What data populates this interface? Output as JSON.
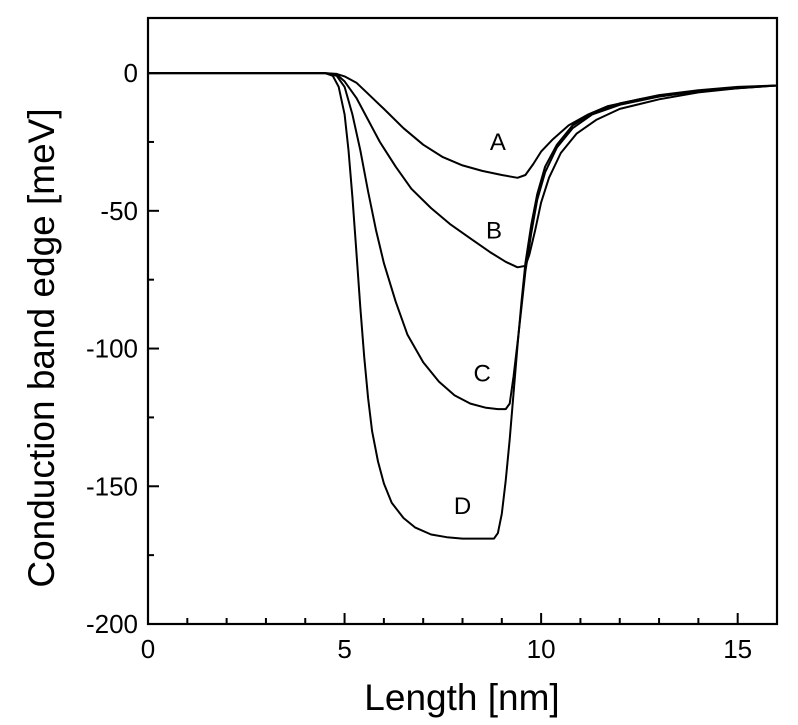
{
  "chart_data": {
    "type": "line",
    "title": "",
    "xlabel": "Length [nm]",
    "ylabel": "Conduction band edge [meV]",
    "xlim": [
      0,
      16
    ],
    "ylim": [
      -200,
      20
    ],
    "x_ticks": [
      0,
      5,
      10,
      15
    ],
    "x_tick_labels": [
      "0",
      "5",
      "10",
      "15"
    ],
    "x_minor_step": 1,
    "y_ticks": [
      0,
      -50,
      -100,
      -150,
      -200
    ],
    "y_tick_labels": [
      "0",
      "-50",
      "-100",
      "-150",
      "-200"
    ],
    "y_minor_step": 25,
    "grid": false,
    "legend": "none",
    "series": [
      {
        "label": "A",
        "label_pos": [
          8.9,
          -28
        ],
        "points": [
          [
            0,
            0
          ],
          [
            4.5,
            0
          ],
          [
            4.8,
            -0.3
          ],
          [
            5.0,
            -1.2
          ],
          [
            5.3,
            -3.5
          ],
          [
            5.6,
            -7.5
          ],
          [
            6.0,
            -13
          ],
          [
            6.5,
            -20
          ],
          [
            7.0,
            -26
          ],
          [
            7.5,
            -30.5
          ],
          [
            8.0,
            -33.5
          ],
          [
            8.5,
            -35.5
          ],
          [
            9.0,
            -37
          ],
          [
            9.4,
            -38
          ],
          [
            9.6,
            -37
          ],
          [
            9.8,
            -33
          ],
          [
            10.0,
            -28.5
          ],
          [
            10.3,
            -24
          ],
          [
            10.7,
            -19
          ],
          [
            11.2,
            -15
          ],
          [
            11.7,
            -12
          ],
          [
            12.5,
            -9.5
          ],
          [
            13.5,
            -7.5
          ],
          [
            14.5,
            -6
          ],
          [
            16,
            -4.5
          ]
        ]
      },
      {
        "label": "B",
        "label_pos": [
          8.8,
          -60
        ],
        "points": [
          [
            0,
            0
          ],
          [
            4.5,
            0
          ],
          [
            4.8,
            -0.5
          ],
          [
            5.0,
            -3
          ],
          [
            5.3,
            -9
          ],
          [
            5.6,
            -17
          ],
          [
            5.9,
            -25
          ],
          [
            6.3,
            -34
          ],
          [
            6.7,
            -42
          ],
          [
            7.2,
            -49
          ],
          [
            7.7,
            -55
          ],
          [
            8.2,
            -60
          ],
          [
            8.7,
            -65
          ],
          [
            9.1,
            -68.5
          ],
          [
            9.4,
            -70.5
          ],
          [
            9.6,
            -70
          ],
          [
            9.7,
            -66
          ],
          [
            9.85,
            -57
          ],
          [
            10.0,
            -47
          ],
          [
            10.2,
            -38
          ],
          [
            10.5,
            -29
          ],
          [
            10.9,
            -22
          ],
          [
            11.4,
            -17
          ],
          [
            12,
            -13
          ],
          [
            13,
            -9.5
          ],
          [
            14,
            -7
          ],
          [
            15,
            -5.5
          ],
          [
            16,
            -4.5
          ]
        ]
      },
      {
        "label": "C",
        "label_pos": [
          8.5,
          -112
        ],
        "points": [
          [
            0,
            0
          ],
          [
            4.5,
            0
          ],
          [
            4.8,
            -1
          ],
          [
            5.0,
            -5
          ],
          [
            5.2,
            -15
          ],
          [
            5.4,
            -28
          ],
          [
            5.6,
            -43
          ],
          [
            5.8,
            -57
          ],
          [
            6.0,
            -69
          ],
          [
            6.3,
            -83
          ],
          [
            6.6,
            -95
          ],
          [
            7.0,
            -105
          ],
          [
            7.4,
            -112
          ],
          [
            7.8,
            -117
          ],
          [
            8.2,
            -120
          ],
          [
            8.6,
            -121.5
          ],
          [
            8.9,
            -122
          ],
          [
            9.1,
            -122
          ],
          [
            9.2,
            -120
          ],
          [
            9.3,
            -110
          ],
          [
            9.4,
            -98
          ],
          [
            9.5,
            -85
          ],
          [
            9.6,
            -72
          ],
          [
            9.75,
            -58
          ],
          [
            9.9,
            -46
          ],
          [
            10.1,
            -36
          ],
          [
            10.4,
            -27
          ],
          [
            10.8,
            -20
          ],
          [
            11.3,
            -15
          ],
          [
            12,
            -11.5
          ],
          [
            13,
            -8.5
          ],
          [
            14,
            -6.5
          ],
          [
            15,
            -5.2
          ],
          [
            16,
            -4.5
          ]
        ]
      },
      {
        "label": "D",
        "label_pos": [
          8.0,
          -160
        ],
        "points": [
          [
            0,
            0
          ],
          [
            4.5,
            0
          ],
          [
            4.7,
            -1
          ],
          [
            4.85,
            -5
          ],
          [
            5.0,
            -15
          ],
          [
            5.1,
            -28
          ],
          [
            5.2,
            -45
          ],
          [
            5.3,
            -65
          ],
          [
            5.4,
            -85
          ],
          [
            5.5,
            -103
          ],
          [
            5.6,
            -118
          ],
          [
            5.7,
            -130
          ],
          [
            5.85,
            -141
          ],
          [
            6.0,
            -149
          ],
          [
            6.2,
            -156
          ],
          [
            6.5,
            -161.5
          ],
          [
            6.8,
            -165
          ],
          [
            7.2,
            -167.5
          ],
          [
            7.6,
            -168.5
          ],
          [
            8.0,
            -169
          ],
          [
            8.4,
            -169
          ],
          [
            8.8,
            -169
          ],
          [
            8.9,
            -167
          ],
          [
            9.0,
            -160
          ],
          [
            9.1,
            -148
          ],
          [
            9.2,
            -133
          ],
          [
            9.3,
            -116
          ],
          [
            9.4,
            -99
          ],
          [
            9.5,
            -83
          ],
          [
            9.6,
            -69
          ],
          [
            9.75,
            -55
          ],
          [
            9.9,
            -44
          ],
          [
            10.1,
            -34
          ],
          [
            10.4,
            -26
          ],
          [
            10.8,
            -19
          ],
          [
            11.3,
            -14.5
          ],
          [
            12,
            -11
          ],
          [
            13,
            -8
          ],
          [
            14,
            -6.2
          ],
          [
            15,
            -5
          ],
          [
            16,
            -4.5
          ]
        ]
      }
    ]
  }
}
